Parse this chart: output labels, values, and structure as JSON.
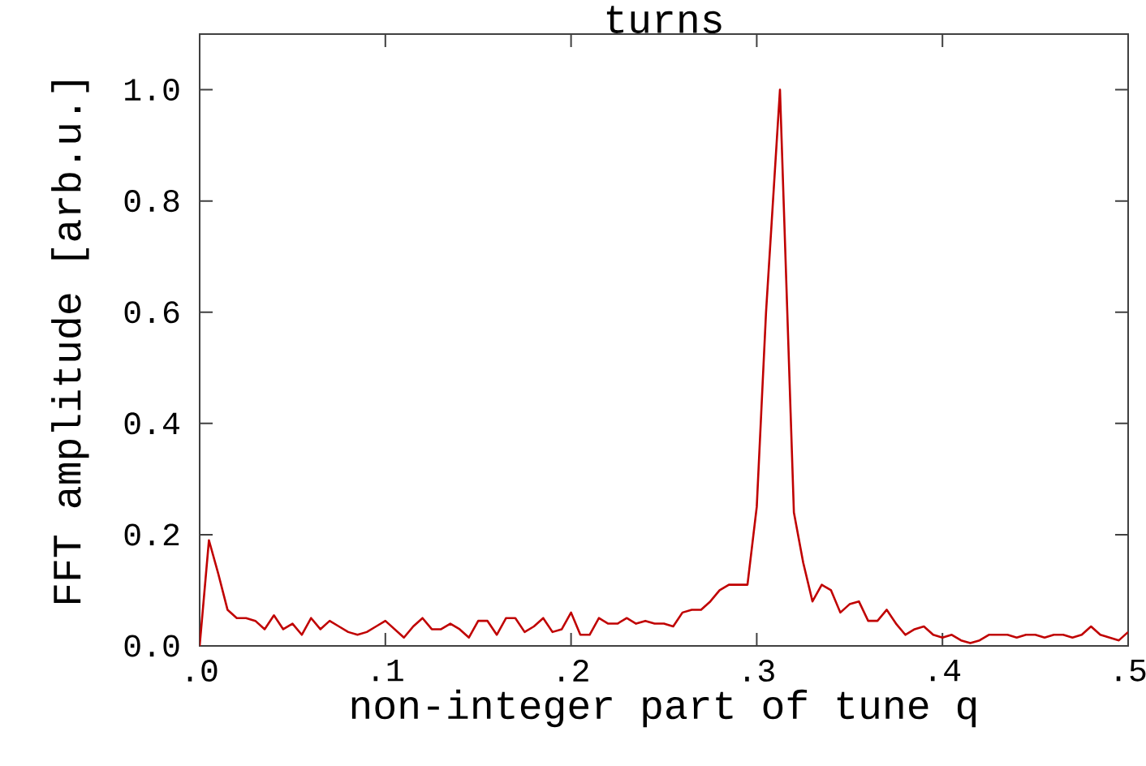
{
  "chart_data": {
    "type": "line",
    "title": "turns",
    "xlabel": "non-integer part of tune q",
    "ylabel": "FFT amplitude [arb.u.]",
    "xlim": [
      0,
      0.5
    ],
    "ylim": [
      0,
      1.1
    ],
    "xticks": [
      {
        "value": 0,
        "label": ".0"
      },
      {
        "value": 0.1,
        "label": ".1"
      },
      {
        "value": 0.2,
        "label": ".2"
      },
      {
        "value": 0.3,
        "label": ".3"
      },
      {
        "value": 0.4,
        "label": ".4"
      },
      {
        "value": 0.5,
        "label": ".5"
      }
    ],
    "yticks": [
      {
        "value": 0,
        "label": "0.0"
      },
      {
        "value": 0.2,
        "label": "0.2"
      },
      {
        "value": 0.4,
        "label": "0.4"
      },
      {
        "value": 0.6,
        "label": "0.6"
      },
      {
        "value": 0.8,
        "label": "0.8"
      },
      {
        "value": 1.0,
        "label": "1.0"
      }
    ],
    "grid": false,
    "marker": "none",
    "line_style": "solid",
    "series": [
      {
        "color": "#c00000",
        "x": [
          0,
          0.005,
          0.01,
          0.015,
          0.02,
          0.025,
          0.03,
          0.035,
          0.04,
          0.045,
          0.05,
          0.055,
          0.06,
          0.065,
          0.07,
          0.075,
          0.08,
          0.085,
          0.09,
          0.095,
          0.1,
          0.105,
          0.11,
          0.115,
          0.12,
          0.125,
          0.13,
          0.135,
          0.14,
          0.145,
          0.15,
          0.155,
          0.16,
          0.165,
          0.17,
          0.175,
          0.18,
          0.185,
          0.19,
          0.195,
          0.2,
          0.205,
          0.21,
          0.215,
          0.22,
          0.225,
          0.23,
          0.235,
          0.24,
          0.245,
          0.25,
          0.255,
          0.26,
          0.265,
          0.27,
          0.275,
          0.28,
          0.285,
          0.29,
          0.295,
          0.3,
          0.305,
          0.3125,
          0.32,
          0.325,
          0.33,
          0.335,
          0.34,
          0.345,
          0.35,
          0.355,
          0.36,
          0.365,
          0.37,
          0.375,
          0.38,
          0.385,
          0.39,
          0.395,
          0.4,
          0.405,
          0.41,
          0.415,
          0.42,
          0.425,
          0.43,
          0.435,
          0.44,
          0.445,
          0.45,
          0.455,
          0.46,
          0.465,
          0.47,
          0.475,
          0.48,
          0.485,
          0.49,
          0.495,
          0.5
        ],
        "values": [
          0,
          0.19,
          0.13,
          0.065,
          0.05,
          0.05,
          0.045,
          0.03,
          0.055,
          0.03,
          0.04,
          0.02,
          0.05,
          0.03,
          0.045,
          0.035,
          0.025,
          0.02,
          0.025,
          0.035,
          0.045,
          0.03,
          0.015,
          0.035,
          0.05,
          0.03,
          0.03,
          0.04,
          0.03,
          0.015,
          0.045,
          0.045,
          0.02,
          0.05,
          0.05,
          0.025,
          0.035,
          0.05,
          0.025,
          0.03,
          0.06,
          0.02,
          0.02,
          0.05,
          0.04,
          0.04,
          0.05,
          0.04,
          0.045,
          0.04,
          0.04,
          0.035,
          0.06,
          0.065,
          0.065,
          0.08,
          0.1,
          0.11,
          0.11,
          0.11,
          0.25,
          0.6,
          1.0,
          0.24,
          0.15,
          0.08,
          0.11,
          0.1,
          0.06,
          0.075,
          0.08,
          0.045,
          0.045,
          0.065,
          0.04,
          0.02,
          0.03,
          0.035,
          0.02,
          0.015,
          0.02,
          0.01,
          0.005,
          0.01,
          0.02,
          0.02,
          0.02,
          0.015,
          0.02,
          0.02,
          0.015,
          0.02,
          0.02,
          0.015,
          0.02,
          0.035,
          0.02,
          0.015,
          0.01,
          0.025
        ]
      }
    ]
  }
}
